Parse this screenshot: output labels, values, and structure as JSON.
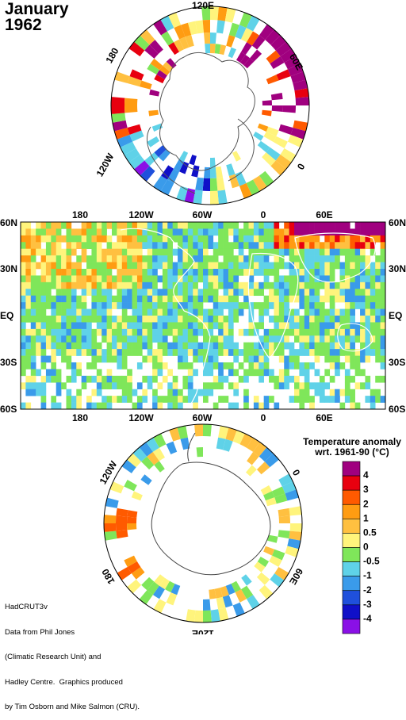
{
  "title": {
    "month": "January",
    "year": "1962"
  },
  "polar_north": {
    "labels": [
      "120E",
      "60E",
      "0",
      "120W",
      "180"
    ]
  },
  "polar_south": {
    "labels": [
      "120W",
      "0",
      "60E",
      "180",
      "120E"
    ]
  },
  "main_map": {
    "top_lon_labels": [
      "180",
      "120W",
      "60W",
      "0",
      "60E"
    ],
    "bottom_lon_labels": [
      "180",
      "120W",
      "60W",
      "0",
      "60E"
    ],
    "lat_labels": [
      "60N",
      "30N",
      "EQ",
      "30S",
      "60S"
    ]
  },
  "legend": {
    "title_line1": "Temperature anomaly",
    "title_line2": "wrt. 1961-90  (°C)",
    "bins": [
      {
        "color": "#a0007f",
        "label": "4"
      },
      {
        "color": "#e8000f",
        "label": "3"
      },
      {
        "color": "#ff5a00",
        "label": "2"
      },
      {
        "color": "#ff9c12",
        "label": "1"
      },
      {
        "color": "#ffc040",
        "label": "0.5"
      },
      {
        "color": "#fff47c",
        "label": "0"
      },
      {
        "color": "#7fe65a",
        "label": "-0.5"
      },
      {
        "color": "#5fd2e8",
        "label": "-1"
      },
      {
        "color": "#3a9bea",
        "label": "-2"
      },
      {
        "color": "#1f50dc",
        "label": "-3"
      },
      {
        "color": "#1010c8",
        "label": "-4"
      },
      {
        "color": "#8a10e6",
        "label": ""
      }
    ]
  },
  "credits": {
    "line1": "HadCRUT3v",
    "line2": "Data from Phil Jones",
    "line3": "(Climatic Research Unit) and",
    "line4": "Hadley Centre.  Graphics produced",
    "line5": "by Tim Osborn and Mike Salmon (CRU)."
  }
}
